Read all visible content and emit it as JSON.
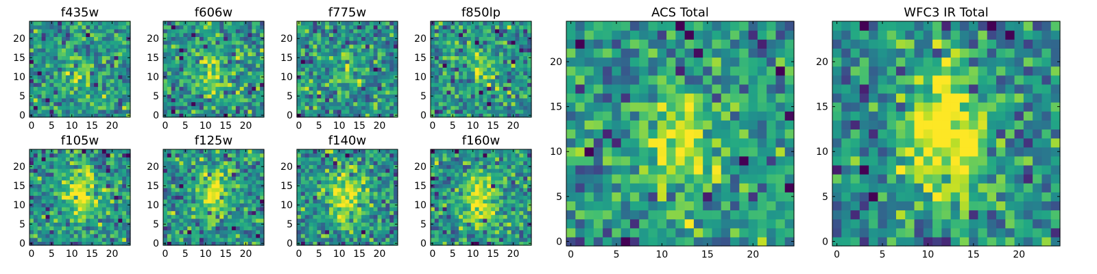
{
  "chart_data": [
    {
      "type": "heatmap",
      "title": "f435w",
      "xticks": [
        0,
        5,
        10,
        15,
        20
      ],
      "yticks": [
        0,
        5,
        10,
        15,
        20
      ],
      "xlim": [
        0,
        25
      ],
      "ylim": [
        0,
        25
      ],
      "grid": false,
      "colormap": "viridis",
      "seed": 11,
      "blob": {
        "x": 12,
        "y": 11,
        "strength": 0.25,
        "sx": 3,
        "sy": 3
      }
    },
    {
      "type": "heatmap",
      "title": "f606w",
      "xticks": [
        0,
        5,
        10,
        15,
        20
      ],
      "yticks": [
        0,
        5,
        10,
        15,
        20
      ],
      "xlim": [
        0,
        25
      ],
      "ylim": [
        0,
        25
      ],
      "grid": false,
      "colormap": "viridis",
      "seed": 23,
      "blob": {
        "x": 12,
        "y": 11,
        "strength": 0.35,
        "sx": 3,
        "sy": 4
      }
    },
    {
      "type": "heatmap",
      "title": "f775w",
      "xticks": [
        0,
        5,
        10,
        15,
        20
      ],
      "yticks": [
        0,
        5,
        10,
        15,
        20
      ],
      "xlim": [
        0,
        25
      ],
      "ylim": [
        0,
        25
      ],
      "grid": false,
      "colormap": "viridis",
      "seed": 37,
      "blob": {
        "x": 12,
        "y": 12,
        "strength": 0.2,
        "sx": 3,
        "sy": 3
      }
    },
    {
      "type": "heatmap",
      "title": "f850lp",
      "xticks": [
        0,
        5,
        10,
        15,
        20
      ],
      "yticks": [
        0,
        5,
        10,
        15,
        20
      ],
      "xlim": [
        0,
        25
      ],
      "ylim": [
        0,
        25
      ],
      "grid": false,
      "colormap": "viridis",
      "seed": 41,
      "blob": {
        "x": 12,
        "y": 12,
        "strength": 0.25,
        "sx": 3,
        "sy": 3
      }
    },
    {
      "type": "heatmap",
      "title": "f105w",
      "xticks": [
        0,
        5,
        10,
        15,
        20
      ],
      "yticks": [
        0,
        5,
        10,
        15,
        20
      ],
      "xlim": [
        0,
        25
      ],
      "ylim": [
        0,
        25
      ],
      "grid": false,
      "colormap": "viridis",
      "seed": 53,
      "blob": {
        "x": 12,
        "y": 13,
        "strength": 0.45,
        "sx": 3,
        "sy": 5
      }
    },
    {
      "type": "heatmap",
      "title": "f125w",
      "xticks": [
        0,
        5,
        10,
        15,
        20
      ],
      "yticks": [
        0,
        5,
        10,
        15,
        20
      ],
      "xlim": [
        0,
        25
      ],
      "ylim": [
        0,
        25
      ],
      "grid": false,
      "colormap": "viridis",
      "seed": 67,
      "blob": {
        "x": 12,
        "y": 13,
        "strength": 0.45,
        "sx": 3,
        "sy": 5
      }
    },
    {
      "type": "heatmap",
      "title": "f140w",
      "xticks": [
        0,
        5,
        10,
        15,
        20
      ],
      "yticks": [
        0,
        5,
        10,
        15,
        20
      ],
      "xlim": [
        0,
        25
      ],
      "ylim": [
        0,
        25
      ],
      "grid": false,
      "colormap": "viridis",
      "seed": 79,
      "blob": {
        "x": 12,
        "y": 13,
        "strength": 0.45,
        "sx": 3,
        "sy": 5
      }
    },
    {
      "type": "heatmap",
      "title": "f160w",
      "xticks": [
        0,
        5,
        10,
        15,
        20
      ],
      "yticks": [
        0,
        5,
        10,
        15,
        20
      ],
      "xlim": [
        0,
        25
      ],
      "ylim": [
        0,
        25
      ],
      "grid": false,
      "colormap": "viridis",
      "seed": 83,
      "blob": {
        "x": 12,
        "y": 12,
        "strength": 0.5,
        "sx": 3,
        "sy": 5
      }
    },
    {
      "type": "heatmap",
      "title": "ACS Total",
      "xticks": [
        0,
        5,
        10,
        15,
        20
      ],
      "yticks": [
        0,
        5,
        10,
        15,
        20
      ],
      "xlim": [
        0,
        25
      ],
      "ylim": [
        0,
        25
      ],
      "grid": false,
      "colormap": "viridis",
      "seed": 97,
      "blob": {
        "x": 12,
        "y": 11,
        "strength": 0.4,
        "sx": 3,
        "sy": 4
      }
    },
    {
      "type": "heatmap",
      "title": "WFC3 IR Total",
      "xticks": [
        0,
        5,
        10,
        15,
        20
      ],
      "yticks": [
        0,
        5,
        10,
        15,
        20
      ],
      "xlim": [
        0,
        25
      ],
      "ylim": [
        0,
        25
      ],
      "grid": false,
      "colormap": "viridis",
      "seed": 101,
      "blob": {
        "x": 12,
        "y": 12,
        "strength": 0.6,
        "sx": 3,
        "sy": 5
      }
    }
  ]
}
